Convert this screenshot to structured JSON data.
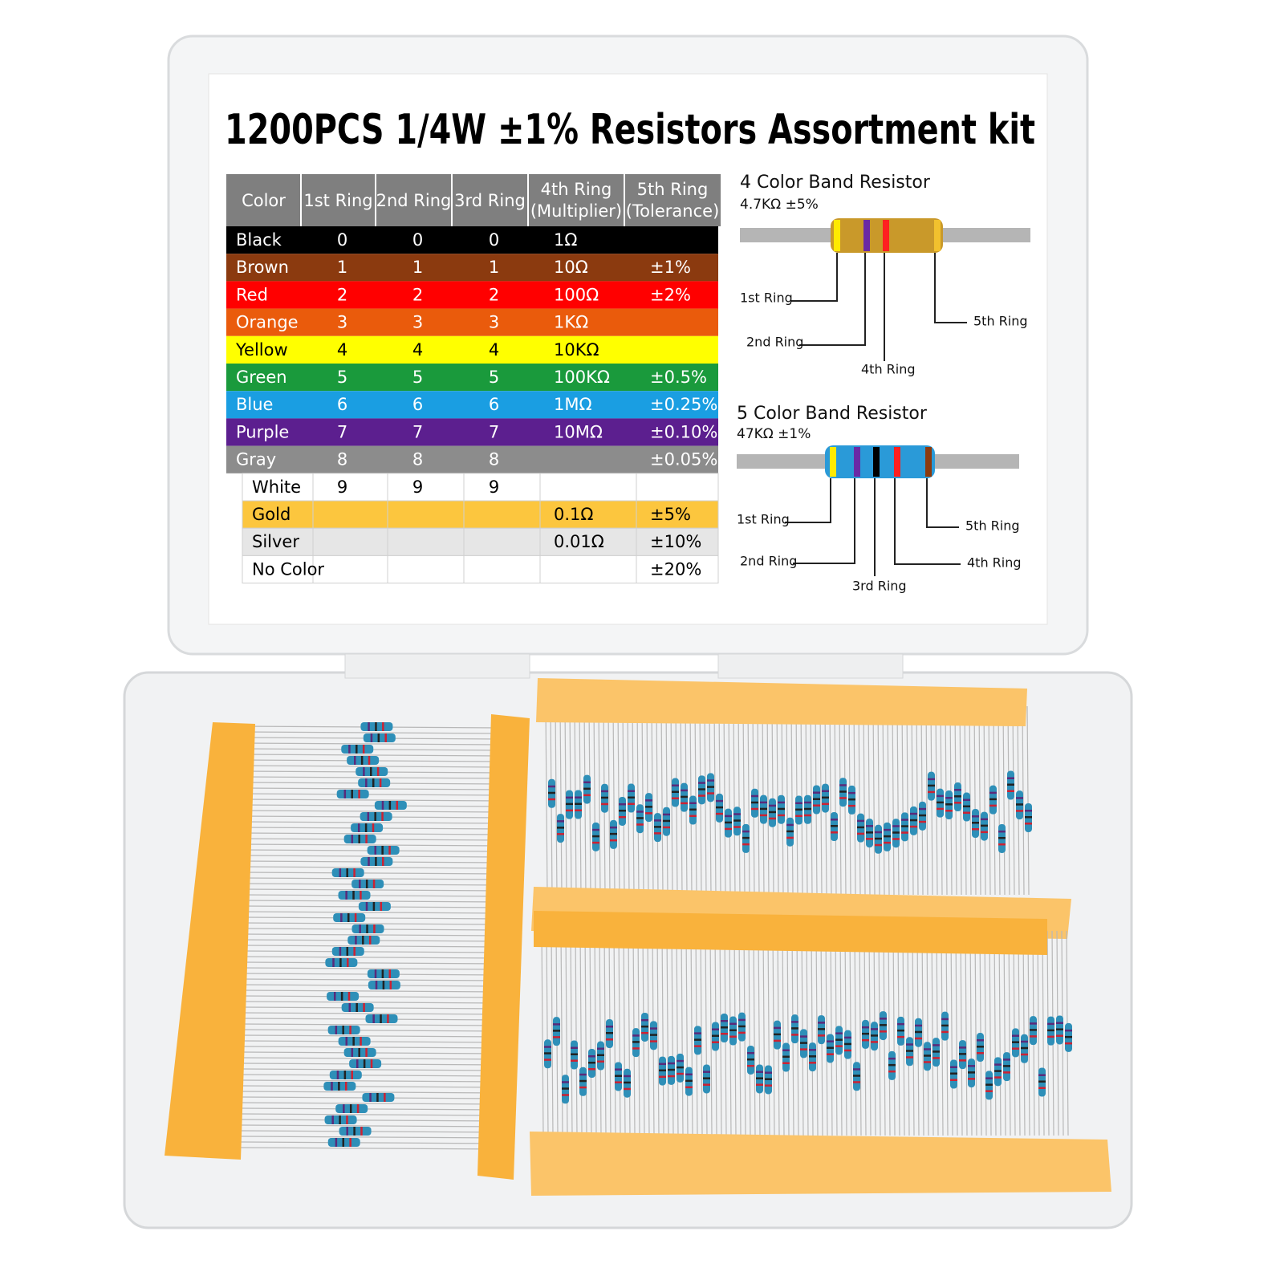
{
  "title": "1200PCS 1/4W ±1% Resistors Assortment kit",
  "table": {
    "header": [
      "Color",
      "1st Ring",
      "2nd Ring",
      "3rd Ring",
      [
        "4th Ring",
        "(Multiplier)"
      ],
      [
        "5th Ring",
        "(Tolerance)"
      ]
    ],
    "rows": [
      [
        "Black",
        "0",
        "0",
        "0",
        "1Ω",
        null
      ],
      [
        "Brown",
        "1",
        "1",
        "1",
        "10Ω",
        "±1%"
      ],
      [
        "Red",
        "2",
        "2",
        "2",
        "100Ω",
        "±2%"
      ],
      [
        "Orange",
        "3",
        "3",
        "3",
        "1KΩ",
        null
      ],
      [
        "Yellow",
        "4",
        "4",
        "4",
        "10KΩ",
        null
      ],
      [
        "Green",
        "5",
        "5",
        "5",
        "100KΩ",
        "±0.5%"
      ],
      [
        "Blue",
        "6",
        "6",
        "6",
        "1MΩ",
        "±0.25%"
      ],
      [
        "Purple",
        "7",
        "7",
        "7",
        "10MΩ",
        "±0.10%"
      ],
      [
        "Gray",
        "8",
        "8",
        "8",
        null,
        "±0.05%"
      ],
      [
        "White",
        "9",
        "9",
        "9",
        null,
        null
      ],
      [
        "Gold",
        null,
        null,
        null,
        "0.1Ω",
        "±5%"
      ],
      [
        "Silver",
        null,
        null,
        null,
        "0.01Ω",
        "±10%"
      ],
      [
        "No Color",
        null,
        null,
        null,
        null,
        "±20%"
      ]
    ]
  },
  "diagrams": [
    {
      "title": "4 Color Band Resistor",
      "spec": "4.7KΩ ±5%",
      "labels": [
        "1st Ring",
        "2nd Ring",
        "4th Ring",
        "5th Ring"
      ]
    },
    {
      "title": "5 Color Band Resistor",
      "spec": "47KΩ ±1%",
      "labels": [
        "1st Ring",
        "2nd Ring",
        "3rd Ring",
        "4th Ring",
        "5th Ring"
      ]
    }
  ]
}
